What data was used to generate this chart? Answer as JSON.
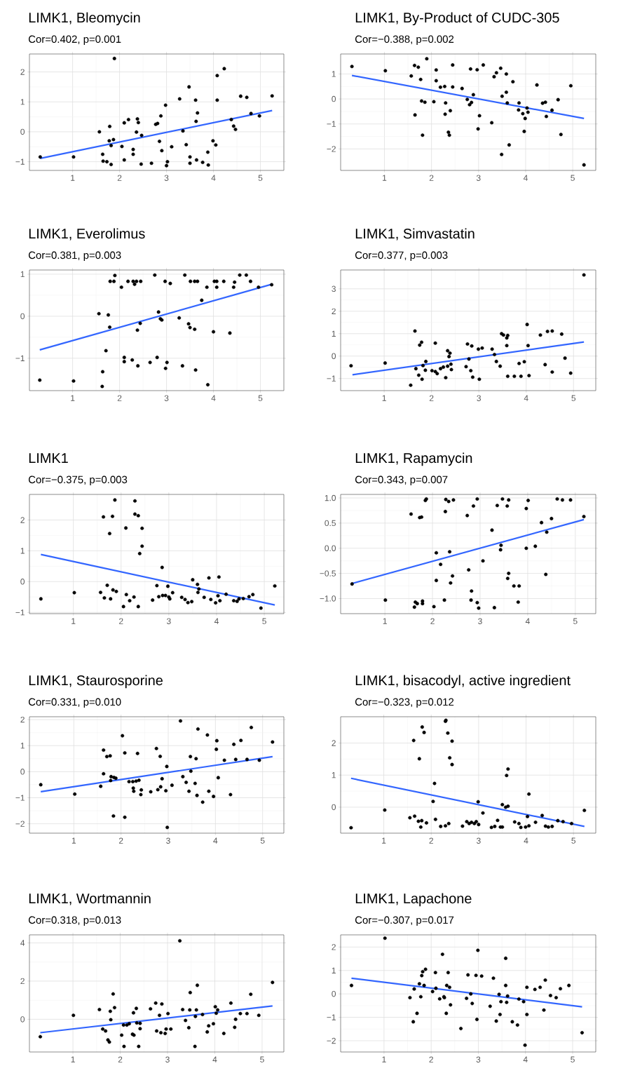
{
  "chart_data": [
    {
      "type": "scatter",
      "title": "LIMK1, Bleomycin",
      "subtitle": "Cor=0.402, p=0.001",
      "grid": true,
      "xlim": [
        0.08,
        5.5
      ],
      "ylim": [
        -1.29,
        2.6
      ],
      "xticks": [
        1,
        2,
        3,
        4,
        5
      ],
      "yticks": [
        {
          "value": -1,
          "label": "−1"
        },
        0,
        1,
        2
      ],
      "series": [
        {
          "color": "#000000",
          "x": [
            0.31,
            1.02,
            1.57,
            1.64,
            1.65,
            1.73,
            1.79,
            1.78,
            1.82,
            1.82,
            1.87,
            1.89,
            2.05,
            2.1,
            2.1,
            2.19,
            2.29,
            2.29,
            2.38,
            2.4,
            2.36,
            2.47,
            2.46,
            2.68,
            2.77,
            2.81,
            2.85,
            2.88,
            2.9,
            2.98,
            3.02,
            3.0,
            3.11,
            3.28,
            3.35,
            3.42,
            3.48,
            3.5,
            3.5,
            3.62,
            3.63,
            3.66,
            3.64,
            3.77,
            3.88,
            3.89,
            3.99,
            4.05,
            4.08,
            4.08,
            4.23,
            4.38,
            4.43,
            4.47,
            4.58,
            4.71,
            4.8,
            4.98,
            5.25
          ],
          "values": [
            -0.84,
            -0.84,
            0.0,
            -0.75,
            -0.98,
            -1.0,
            0.18,
            -0.3,
            -0.46,
            -1.09,
            -0.26,
            2.45,
            -0.49,
            0.3,
            -0.94,
            0.41,
            -0.59,
            -0.75,
            0.43,
            0.31,
            -0.01,
            -0.12,
            -1.08,
            -1.05,
            0.25,
            0.28,
            -0.32,
            0.53,
            -0.63,
            0.89,
            -1.0,
            -1.13,
            -0.5,
            1.1,
            0.03,
            -0.43,
            1.5,
            -0.84,
            -1.05,
            1.06,
            0.35,
            0.63,
            -0.94,
            -1.02,
            -0.68,
            -1.11,
            -0.3,
            -0.44,
            1.88,
            1.06,
            2.11,
            0.41,
            0.19,
            0.08,
            1.19,
            1.15,
            0.61,
            0.53,
            1.2
          ]
        },
        {
          "type": "line",
          "marker": "none",
          "color": "#3366ff",
          "x": [
            0.31,
            5.25
          ],
          "values": [
            -0.89,
            0.71
          ]
        }
      ]
    },
    {
      "type": "scatter",
      "title": "LIMK1, By-Product of CUDC-305",
      "subtitle": "Cor=−0.388, p=0.002",
      "grid": true,
      "xlim": [
        0.07,
        5.49
      ],
      "ylim": [
        -2.86,
        1.8
      ],
      "xticks": [
        1,
        2,
        3,
        4,
        5
      ],
      "yticks": [
        {
          "value": -2,
          "label": "−2"
        },
        {
          "value": -1,
          "label": "−1"
        },
        0,
        1
      ],
      "series": [
        {
          "color": "#000000",
          "x": [
            0.31,
            1.02,
            1.57,
            1.64,
            1.72,
            1.65,
            1.77,
            1.79,
            1.81,
            1.86,
            1.9,
            2.05,
            2.1,
            2.1,
            2.19,
            2.28,
            2.3,
            2.29,
            2.36,
            2.38,
            2.4,
            2.45,
            2.45,
            2.65,
            2.76,
            2.81,
            2.85,
            2.89,
            2.83,
            2.97,
            2.99,
            3.02,
            3.1,
            3.28,
            3.33,
            3.38,
            3.47,
            3.49,
            3.5,
            3.59,
            3.59,
            3.61,
            3.65,
            3.73,
            3.86,
            3.85,
            3.94,
            3.97,
            3.99,
            4.03,
            4.05,
            4.24,
            4.36,
            4.42,
            4.44,
            4.56,
            4.69,
            4.75,
            4.96,
            5.24
          ],
          "values": [
            1.3,
            1.13,
            0.92,
            1.34,
            1.27,
            -0.64,
            0.78,
            -0.08,
            -1.45,
            -0.13,
            1.61,
            -0.11,
            1.16,
            0.73,
            0.47,
            0.5,
            -0.16,
            -0.61,
            -1.33,
            -1.45,
            -0.47,
            0.48,
            1.36,
            0.42,
            -0.02,
            -0.23,
            -0.14,
            0.17,
            1.2,
            1.17,
            -1.2,
            -0.67,
            1.36,
            -0.95,
            0.89,
            1.05,
            1.23,
            -2.22,
            0.11,
            1.0,
            0.27,
            -0.16,
            -1.84,
            0.69,
            -0.16,
            -0.44,
            -0.59,
            -1.3,
            -0.78,
            -0.36,
            -0.53,
            0.56,
            -0.17,
            -0.13,
            -0.7,
            -0.45,
            -0.03,
            -1.42,
            0.53,
            -2.64
          ]
        },
        {
          "type": "line",
          "marker": "none",
          "color": "#3366ff",
          "x": [
            0.31,
            5.24
          ],
          "values": [
            0.94,
            -0.78
          ]
        }
      ]
    },
    {
      "type": "scatter",
      "title": "LIMK1, Everolimus",
      "subtitle": "Cor=0.381, p=0.003",
      "grid": true,
      "xlim": [
        0.08,
        5.5
      ],
      "ylim": [
        -1.77,
        1.1
      ],
      "xticks": [
        1,
        2,
        3,
        4,
        5
      ],
      "yticks": [
        {
          "value": -1,
          "label": "−1"
        },
        0,
        1
      ],
      "series": [
        {
          "color": "#000000",
          "x": [
            0.3,
            1.02,
            1.56,
            1.71,
            1.64,
            1.63,
            1.76,
            1.79,
            1.8,
            1.88,
            1.9,
            2.04,
            2.1,
            2.1,
            2.18,
            2.27,
            2.29,
            2.32,
            2.36,
            2.38,
            2.39,
            2.44,
            2.45,
            2.65,
            2.75,
            2.8,
            2.83,
            2.87,
            2.9,
            2.97,
            2.98,
            3.01,
            3.08,
            3.27,
            3.34,
            3.39,
            3.47,
            3.5,
            3.51,
            3.6,
            3.62,
            3.6,
            3.66,
            3.75,
            3.86,
            3.88,
            4.0,
            4.02,
            4.07,
            4.07,
            4.22,
            4.35,
            4.43,
            4.45,
            4.56,
            4.7,
            4.79,
            4.96,
            5.24
          ],
          "values": [
            -1.52,
            -1.54,
            0.06,
            -0.82,
            -1.32,
            -1.67,
            0.03,
            -0.26,
            0.83,
            0.83,
            0.97,
            0.69,
            -0.98,
            -1.08,
            0.83,
            -1.04,
            0.83,
            0.76,
            0.83,
            -0.33,
            -1.18,
            -0.17,
            0.83,
            -1.1,
            0.98,
            -0.98,
            0.1,
            -0.06,
            -0.09,
            0.83,
            -1.24,
            -1.1,
            0.78,
            -0.04,
            -1.18,
            0.98,
            -0.18,
            -0.27,
            0.83,
            -0.31,
            -1.28,
            0.83,
            0.83,
            0.38,
            0.69,
            -1.63,
            -0.37,
            0.83,
            0.69,
            0.83,
            0.83,
            -0.4,
            0.69,
            0.81,
            0.98,
            0.98,
            0.83,
            0.69,
            0.75
          ]
        },
        {
          "type": "line",
          "marker": "none",
          "color": "#3366ff",
          "x": [
            0.3,
            5.24
          ],
          "values": [
            -0.8,
            0.76
          ]
        }
      ]
    },
    {
      "type": "scatter",
      "title": "LIMK1, Simvastatin",
      "subtitle": "Cor=0.377, p=0.003",
      "grid": true,
      "xlim": [
        0.08,
        5.47
      ],
      "ylim": [
        -1.54,
        3.84
      ],
      "xticks": [
        1,
        2,
        3,
        4,
        5
      ],
      "yticks": [
        {
          "value": -1,
          "label": "−1"
        },
        0,
        1,
        2,
        3
      ],
      "series": [
        {
          "color": "#000000",
          "x": [
            0.3,
            1.02,
            1.56,
            1.65,
            1.67,
            1.73,
            1.75,
            1.79,
            1.8,
            1.82,
            1.87,
            1.88,
            2.01,
            2.08,
            2.08,
            2.12,
            2.19,
            2.25,
            2.3,
            2.34,
            2.34,
            2.37,
            2.39,
            2.41,
            2.42,
            2.73,
            2.76,
            2.79,
            2.83,
            2.85,
            2.87,
            2.99,
            3.01,
            3.07,
            3.28,
            3.33,
            3.37,
            3.45,
            3.48,
            3.52,
            3.59,
            3.59,
            3.61,
            3.61,
            3.75,
            3.85,
            3.89,
            3.96,
            4.02,
            4.04,
            4.06,
            4.3,
            4.4,
            4.45,
            4.55,
            4.55,
            4.75,
            4.82,
            4.94,
            5.22
          ],
          "values": [
            -0.43,
            -0.31,
            -1.3,
            1.12,
            -0.56,
            -0.85,
            0.49,
            0.62,
            -1.03,
            -0.42,
            -0.63,
            -0.24,
            -0.65,
            0.58,
            -0.69,
            -0.78,
            -0.56,
            -0.49,
            -0.96,
            -0.45,
            0.24,
            -0.02,
            0.13,
            -0.36,
            -0.6,
            -0.47,
            0.54,
            -0.13,
            -0.65,
            0.45,
            -0.94,
            0.31,
            -1.03,
            0.36,
            0.31,
            0.07,
            -0.24,
            -0.45,
            1.0,
            0.94,
            0.47,
            0.81,
            0.92,
            -0.9,
            -0.9,
            -0.33,
            -0.9,
            -0.25,
            1.41,
            0.47,
            -0.87,
            0.94,
            -0.38,
            1.1,
            1.12,
            -0.71,
            0.98,
            -0.09,
            -0.76,
            3.62
          ]
        },
        {
          "type": "line",
          "marker": "none",
          "color": "#3366ff",
          "x": [
            0.33,
            5.22
          ],
          "values": [
            -0.83,
            0.63
          ]
        }
      ]
    },
    {
      "type": "scatter",
      "title": "LIMK1",
      "subtitle": "Cor=−0.375, p=0.003",
      "grid": true,
      "xlim": [
        0.08,
        5.41
      ],
      "ylim": [
        -1.04,
        2.83
      ],
      "xticks": [
        1,
        2,
        3,
        4,
        5
      ],
      "yticks": [
        {
          "value": -1,
          "label": "−1"
        },
        0,
        1,
        2
      ],
      "series": [
        {
          "color": "#000000",
          "x": [
            0.32,
            1.02,
            1.57,
            1.63,
            1.65,
            1.71,
            1.76,
            1.78,
            1.82,
            1.83,
            1.87,
            1.9,
            2.05,
            2.1,
            2.11,
            2.18,
            2.27,
            2.29,
            2.29,
            2.36,
            2.36,
            2.39,
            2.44,
            2.44,
            2.66,
            2.75,
            2.79,
            2.86,
            2.87,
            2.93,
            2.98,
            3.0,
            3.02,
            3.08,
            3.27,
            3.34,
            3.4,
            3.48,
            3.5,
            3.6,
            3.61,
            3.63,
            3.74,
            3.84,
            3.88,
            3.98,
            4.03,
            4.05,
            4.07,
            4.2,
            4.36,
            4.43,
            4.47,
            4.56,
            4.68,
            4.76,
            4.93,
            5.22
          ],
          "values": [
            -0.56,
            -0.36,
            -0.35,
            2.1,
            -0.53,
            -0.12,
            1.56,
            -0.56,
            2.12,
            -0.27,
            2.65,
            -0.32,
            -0.81,
            1.74,
            -0.42,
            -0.62,
            -0.5,
            2.62,
            2.19,
            2.14,
            -0.81,
            0.91,
            1.73,
            1.15,
            -0.6,
            -0.13,
            -0.49,
            0.46,
            -0.45,
            -0.45,
            -0.15,
            -0.5,
            -0.56,
            -0.36,
            -0.51,
            -0.58,
            -0.68,
            -0.65,
            0.06,
            -0.09,
            -0.35,
            -0.24,
            -0.51,
            0.12,
            -0.58,
            -0.69,
            -0.46,
            0.15,
            -0.62,
            -0.41,
            -0.62,
            -0.64,
            -0.56,
            -0.55,
            -0.49,
            -0.42,
            -0.86,
            -0.14
          ]
        },
        {
          "type": "line",
          "marker": "none",
          "color": "#3366ff",
          "x": [
            0.32,
            5.22
          ],
          "values": [
            0.88,
            -0.76
          ]
        }
      ]
    },
    {
      "type": "scatter",
      "title": "LIMK1, Rapamycin",
      "subtitle": "Cor=0.343, p=0.007",
      "grid": true,
      "xlim": [
        0.07,
        5.43
      ],
      "ylim": [
        -1.3,
        1.07
      ],
      "xticks": [
        1,
        2,
        3,
        4,
        5
      ],
      "yticks": [
        {
          "value": -1,
          "label": "−1.0"
        },
        {
          "value": -0.5,
          "label": "−0.5"
        },
        {
          "value": 0,
          "label": "0.0"
        },
        {
          "value": 0.5,
          "label": "0.5"
        },
        {
          "value": 1,
          "label": "1.0"
        }
      ],
      "series": [
        {
          "color": "#000000",
          "x": [
            0.31,
            1.01,
            1.55,
            1.62,
            1.64,
            1.68,
            1.73,
            1.77,
            1.79,
            1.79,
            1.85,
            1.87,
            2.03,
            2.08,
            2.08,
            2.17,
            2.25,
            2.27,
            2.28,
            2.34,
            2.36,
            2.38,
            2.42,
            2.44,
            2.73,
            2.76,
            2.81,
            2.82,
            2.86,
            2.94,
            2.94,
            2.97,
            3.06,
            3.25,
            3.3,
            3.36,
            3.47,
            3.43,
            3.44,
            3.57,
            3.58,
            3.6,
            3.6,
            3.71,
            3.82,
            3.8,
            3.97,
            3.97,
            4.01,
            4.16,
            4.29,
            4.38,
            4.4,
            4.5,
            4.62,
            4.73,
            4.9,
            5.18
          ],
          "values": [
            -0.71,
            -1.03,
            0.68,
            -1.17,
            -1.07,
            -1.1,
            0.61,
            0.62,
            -1.05,
            -1.1,
            0.95,
            0.98,
            -1.16,
            -0.09,
            -0.64,
            -0.32,
            -1.03,
            0.73,
            0.97,
            0.93,
            -0.07,
            -0.69,
            -0.55,
            0.96,
            0.65,
            -0.43,
            -1.03,
            -0.85,
            0.84,
            0.98,
            -1.08,
            -1.19,
            -0.25,
            0.36,
            -1.18,
            0.85,
            0.98,
            -0.03,
            0.06,
            0.84,
            -0.6,
            -0.5,
            0.96,
            -0.75,
            -0.75,
            -1.07,
            0.79,
            0.0,
            0.95,
            0.04,
            0.51,
            -0.52,
            0.32,
            0.59,
            0.98,
            0.96,
            0.96,
            0.63
          ]
        },
        {
          "type": "line",
          "marker": "none",
          "color": "#3366ff",
          "x": [
            0.31,
            5.18
          ],
          "values": [
            -0.7,
            0.57
          ]
        }
      ]
    },
    {
      "type": "scatter",
      "title": "LIMK1, Staurosporine",
      "subtitle": "Cor=0.331, p=0.010",
      "grid": true,
      "xlim": [
        0.06,
        5.45
      ],
      "ylim": [
        -2.36,
        2.11
      ],
      "xticks": [
        1,
        2,
        3,
        4,
        5
      ],
      "yticks": [
        {
          "value": -2,
          "label": "−2"
        },
        {
          "value": -1,
          "label": "−1"
        },
        0,
        1,
        2
      ],
      "series": [
        {
          "color": "#000000",
          "x": [
            0.3,
            1.02,
            1.57,
            1.63,
            1.63,
            1.7,
            1.77,
            1.78,
            1.79,
            1.85,
            1.84,
            1.89,
            2.03,
            2.08,
            2.08,
            2.17,
            2.25,
            2.26,
            2.27,
            2.32,
            2.35,
            2.38,
            2.43,
            2.42,
            2.63,
            2.75,
            2.78,
            2.83,
            2.84,
            2.87,
            2.95,
            2.97,
            2.98,
            3.08,
            3.26,
            3.31,
            3.38,
            3.44,
            3.47,
            3.48,
            3.57,
            3.59,
            3.61,
            3.63,
            3.73,
            3.83,
            3.86,
            3.96,
            4.02,
            4.03,
            4.06,
            4.19,
            4.32,
            4.39,
            4.43,
            4.54,
            4.67,
            4.76,
            4.93,
            5.21
          ],
          "values": [
            -0.5,
            -0.86,
            -0.56,
            0.83,
            -0.08,
            0.58,
            0.61,
            -0.34,
            -0.19,
            -0.22,
            -1.7,
            -0.25,
            1.38,
            0.72,
            -1.75,
            -0.38,
            -0.38,
            -0.63,
            -0.75,
            -0.36,
            0.7,
            -0.33,
            -0.7,
            -0.88,
            -0.77,
            0.89,
            -0.69,
            0.59,
            -0.58,
            -0.27,
            -0.73,
            0.2,
            -2.14,
            -0.52,
            1.95,
            -0.19,
            -0.41,
            -0.75,
            0.58,
            0.02,
            -0.45,
            0.5,
            -0.91,
            1.64,
            -1.17,
            1.41,
            -0.75,
            -0.95,
            0.86,
            1.19,
            -0.23,
            0.44,
            -0.88,
            1.05,
            0.47,
            1.2,
            0.47,
            1.7,
            0.44,
            1.14
          ]
        },
        {
          "type": "line",
          "marker": "none",
          "color": "#3366ff",
          "x": [
            0.3,
            5.21
          ],
          "values": [
            -0.77,
            0.58
          ]
        }
      ]
    },
    {
      "type": "scatter",
      "title": "LIMK1, bisacodyl, active ingredient",
      "subtitle": "Cor=−0.323, p=0.012",
      "grid": true,
      "xlim": [
        0.09,
        5.47
      ],
      "ylim": [
        -0.81,
        2.82
      ],
      "xticks": [
        1,
        2,
        3,
        4,
        5
      ],
      "yticks": [
        0,
        1,
        2
      ],
      "series": [
        {
          "color": "#000000",
          "x": [
            0.31,
            1.02,
            1.55,
            1.63,
            1.65,
            1.73,
            1.75,
            1.78,
            1.8,
            1.81,
            1.85,
            1.9,
            2.04,
            2.07,
            2.09,
            2.2,
            2.3,
            2.3,
            2.31,
            2.37,
            2.35,
            2.39,
            2.44,
            2.44,
            2.66,
            2.75,
            2.8,
            2.85,
            2.91,
            2.95,
            2.99,
            3.0,
            3.09,
            3.27,
            3.34,
            3.4,
            3.46,
            3.5,
            3.5,
            3.57,
            3.59,
            3.62,
            3.62,
            3.76,
            3.85,
            3.89,
            3.99,
            4.03,
            4.06,
            4.06,
            4.2,
            4.34,
            4.41,
            4.47,
            4.55,
            4.67,
            4.78,
            4.96,
            5.23
          ],
          "values": [
            -0.64,
            -0.09,
            -0.33,
            2.08,
            -0.28,
            -0.44,
            1.51,
            -0.62,
            -0.42,
            2.5,
            2.33,
            -0.49,
            0.18,
            0.74,
            -0.38,
            -0.6,
            -0.58,
            2.68,
            2.71,
            -0.51,
            2.31,
            1.54,
            2.06,
            1.33,
            -0.59,
            -0.45,
            -0.51,
            -0.47,
            -0.51,
            -0.45,
            0.17,
            -0.54,
            -0.18,
            -0.63,
            -0.6,
            -0.41,
            -0.62,
            0.08,
            -0.62,
            0.0,
            0.99,
            1.19,
            0.03,
            -0.46,
            -0.51,
            -0.63,
            -0.62,
            -0.29,
            0.41,
            -0.58,
            -0.47,
            -0.26,
            -0.59,
            -0.62,
            -0.6,
            -0.42,
            -0.45,
            -0.51,
            -0.1
          ]
        },
        {
          "type": "line",
          "marker": "none",
          "color": "#3366ff",
          "x": [
            0.31,
            5.23
          ],
          "values": [
            0.9,
            -0.6
          ]
        }
      ]
    },
    {
      "type": "scatter",
      "title": "LIMK1, Wortmannin",
      "subtitle": "Cor=0.318, p=0.013",
      "grid": true,
      "xlim": [
        0.08,
        5.46
      ],
      "ylim": [
        -1.71,
        4.42
      ],
      "xticks": [
        1,
        2,
        3,
        4,
        5
      ],
      "yticks": [
        0,
        2,
        4
      ],
      "series": [
        {
          "color": "#000000",
          "x": [
            0.31,
            1.01,
            1.56,
            1.63,
            1.69,
            1.74,
            1.77,
            1.79,
            1.8,
            1.85,
            1.88,
            2.03,
            2.07,
            2.08,
            2.14,
            2.19,
            2.26,
            2.29,
            2.28,
            2.34,
            2.35,
            2.39,
            2.42,
            2.42,
            2.64,
            2.75,
            2.77,
            2.83,
            2.86,
            2.88,
            2.95,
            2.97,
            3.01,
            3.07,
            3.26,
            3.32,
            3.38,
            3.45,
            3.48,
            3.47,
            3.58,
            3.59,
            3.61,
            3.63,
            3.74,
            3.84,
            3.87,
            3.97,
            4.01,
            4.03,
            4.06,
            4.19,
            4.34,
            4.42,
            4.44,
            4.54,
            4.68,
            4.76,
            4.93,
            5.22
          ],
          "values": [
            -0.91,
            0.21,
            0.51,
            -0.51,
            -0.61,
            -1.08,
            -1.19,
            0.42,
            -0.02,
            1.33,
            0.61,
            -0.83,
            -0.3,
            -1.42,
            -0.3,
            -0.23,
            -0.78,
            -0.83,
            0.34,
            0.57,
            -0.19,
            -1.42,
            -0.49,
            -0.21,
            0.55,
            0.85,
            -0.61,
            0.21,
            -0.7,
            0.8,
            -0.74,
            -0.51,
            0.3,
            -0.51,
            4.11,
            0.51,
            -0.06,
            -0.44,
            1.4,
            0.49,
            -1.42,
            0.15,
            0.49,
            1.78,
            0.25,
            -0.66,
            -0.34,
            -0.23,
            0.66,
            0.32,
            0.49,
            -0.74,
            0.85,
            -0.42,
            0.0,
            0.3,
            0.3,
            1.31,
            0.21,
            1.93
          ]
        },
        {
          "type": "line",
          "marker": "none",
          "color": "#3366ff",
          "x": [
            0.31,
            5.22
          ],
          "values": [
            -0.7,
            0.7
          ]
        }
      ]
    },
    {
      "type": "scatter",
      "title": "LIMK1, Lapachone",
      "subtitle": "Cor=−0.307, p=0.017",
      "grid": true,
      "xlim": [
        0.08,
        5.49
      ],
      "ylim": [
        -2.48,
        2.52
      ],
      "xticks": [
        1,
        2,
        3,
        4,
        5
      ],
      "yticks": [
        {
          "value": -2,
          "label": "−2"
        },
        {
          "value": -1,
          "label": "−1"
        },
        0,
        1,
        2
      ],
      "series": [
        {
          "color": "#000000",
          "x": [
            0.31,
            1.02,
            1.55,
            1.62,
            1.64,
            1.7,
            1.75,
            1.78,
            1.8,
            1.82,
            1.85,
            1.88,
            2.03,
            2.09,
            2.1,
            2.18,
            2.24,
            2.27,
            2.28,
            2.32,
            2.33,
            2.36,
            2.39,
            2.41,
            2.63,
            2.75,
            2.78,
            2.84,
            2.87,
            2.95,
            2.97,
            2.99,
            3.07,
            3.25,
            3.32,
            3.38,
            3.44,
            3.46,
            3.48,
            3.58,
            3.58,
            3.6,
            3.62,
            3.72,
            3.83,
            3.86,
            3.96,
            3.99,
            4.03,
            4.03,
            4.2,
            4.31,
            4.39,
            4.42,
            4.53,
            4.65,
            4.74,
            4.92,
            5.2
          ],
          "values": [
            0.36,
            2.38,
            -0.16,
            -1.19,
            0.21,
            -0.83,
            0.43,
            -0.12,
            0.78,
            0.95,
            0.36,
            1.05,
            0.1,
            0.91,
            0.24,
            -0.21,
            1.69,
            -0.12,
            -0.16,
            -0.83,
            0.36,
            0.91,
            0.28,
            -0.47,
            -1.48,
            -0.19,
            0.81,
            0.0,
            -0.41,
            0.79,
            -1.09,
            1.86,
            0.76,
            -0.53,
            0.67,
            -1.16,
            -0.02,
            -0.88,
            -0.33,
            1.52,
            0.36,
            -0.36,
            -0.09,
            -1.19,
            -1.33,
            -0.22,
            -0.33,
            -2.19,
            0.28,
            -0.88,
            0.19,
            0.28,
            -0.69,
            0.59,
            -0.07,
            -0.16,
            0.22,
            0.36,
            -1.66
          ]
        },
        {
          "type": "line",
          "marker": "none",
          "color": "#3366ff",
          "x": [
            0.31,
            5.2
          ],
          "values": [
            0.67,
            -0.55
          ]
        }
      ]
    }
  ]
}
